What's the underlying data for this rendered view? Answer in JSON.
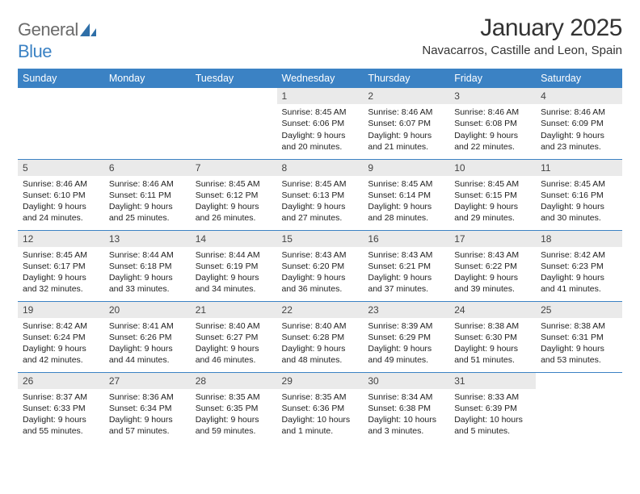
{
  "logo": {
    "general": "General",
    "blue": "Blue"
  },
  "title": "January 2025",
  "location": "Navacarros, Castille and Leon, Spain",
  "colors": {
    "header_bg": "#3b82c4",
    "header_text": "#ffffff",
    "daynum_bg": "#eaeaea",
    "row_border": "#3b82c4",
    "logo_gray": "#6b6b6b",
    "logo_blue": "#3b82c4"
  },
  "day_headers": [
    "Sunday",
    "Monday",
    "Tuesday",
    "Wednesday",
    "Thursday",
    "Friday",
    "Saturday"
  ],
  "weeks": [
    [
      {
        "n": "",
        "sunrise": "",
        "sunset": "",
        "daylight": ""
      },
      {
        "n": "",
        "sunrise": "",
        "sunset": "",
        "daylight": ""
      },
      {
        "n": "",
        "sunrise": "",
        "sunset": "",
        "daylight": ""
      },
      {
        "n": "1",
        "sunrise": "Sunrise: 8:45 AM",
        "sunset": "Sunset: 6:06 PM",
        "daylight": "Daylight: 9 hours and 20 minutes."
      },
      {
        "n": "2",
        "sunrise": "Sunrise: 8:46 AM",
        "sunset": "Sunset: 6:07 PM",
        "daylight": "Daylight: 9 hours and 21 minutes."
      },
      {
        "n": "3",
        "sunrise": "Sunrise: 8:46 AM",
        "sunset": "Sunset: 6:08 PM",
        "daylight": "Daylight: 9 hours and 22 minutes."
      },
      {
        "n": "4",
        "sunrise": "Sunrise: 8:46 AM",
        "sunset": "Sunset: 6:09 PM",
        "daylight": "Daylight: 9 hours and 23 minutes."
      }
    ],
    [
      {
        "n": "5",
        "sunrise": "Sunrise: 8:46 AM",
        "sunset": "Sunset: 6:10 PM",
        "daylight": "Daylight: 9 hours and 24 minutes."
      },
      {
        "n": "6",
        "sunrise": "Sunrise: 8:46 AM",
        "sunset": "Sunset: 6:11 PM",
        "daylight": "Daylight: 9 hours and 25 minutes."
      },
      {
        "n": "7",
        "sunrise": "Sunrise: 8:45 AM",
        "sunset": "Sunset: 6:12 PM",
        "daylight": "Daylight: 9 hours and 26 minutes."
      },
      {
        "n": "8",
        "sunrise": "Sunrise: 8:45 AM",
        "sunset": "Sunset: 6:13 PM",
        "daylight": "Daylight: 9 hours and 27 minutes."
      },
      {
        "n": "9",
        "sunrise": "Sunrise: 8:45 AM",
        "sunset": "Sunset: 6:14 PM",
        "daylight": "Daylight: 9 hours and 28 minutes."
      },
      {
        "n": "10",
        "sunrise": "Sunrise: 8:45 AM",
        "sunset": "Sunset: 6:15 PM",
        "daylight": "Daylight: 9 hours and 29 minutes."
      },
      {
        "n": "11",
        "sunrise": "Sunrise: 8:45 AM",
        "sunset": "Sunset: 6:16 PM",
        "daylight": "Daylight: 9 hours and 30 minutes."
      }
    ],
    [
      {
        "n": "12",
        "sunrise": "Sunrise: 8:45 AM",
        "sunset": "Sunset: 6:17 PM",
        "daylight": "Daylight: 9 hours and 32 minutes."
      },
      {
        "n": "13",
        "sunrise": "Sunrise: 8:44 AM",
        "sunset": "Sunset: 6:18 PM",
        "daylight": "Daylight: 9 hours and 33 minutes."
      },
      {
        "n": "14",
        "sunrise": "Sunrise: 8:44 AM",
        "sunset": "Sunset: 6:19 PM",
        "daylight": "Daylight: 9 hours and 34 minutes."
      },
      {
        "n": "15",
        "sunrise": "Sunrise: 8:43 AM",
        "sunset": "Sunset: 6:20 PM",
        "daylight": "Daylight: 9 hours and 36 minutes."
      },
      {
        "n": "16",
        "sunrise": "Sunrise: 8:43 AM",
        "sunset": "Sunset: 6:21 PM",
        "daylight": "Daylight: 9 hours and 37 minutes."
      },
      {
        "n": "17",
        "sunrise": "Sunrise: 8:43 AM",
        "sunset": "Sunset: 6:22 PM",
        "daylight": "Daylight: 9 hours and 39 minutes."
      },
      {
        "n": "18",
        "sunrise": "Sunrise: 8:42 AM",
        "sunset": "Sunset: 6:23 PM",
        "daylight": "Daylight: 9 hours and 41 minutes."
      }
    ],
    [
      {
        "n": "19",
        "sunrise": "Sunrise: 8:42 AM",
        "sunset": "Sunset: 6:24 PM",
        "daylight": "Daylight: 9 hours and 42 minutes."
      },
      {
        "n": "20",
        "sunrise": "Sunrise: 8:41 AM",
        "sunset": "Sunset: 6:26 PM",
        "daylight": "Daylight: 9 hours and 44 minutes."
      },
      {
        "n": "21",
        "sunrise": "Sunrise: 8:40 AM",
        "sunset": "Sunset: 6:27 PM",
        "daylight": "Daylight: 9 hours and 46 minutes."
      },
      {
        "n": "22",
        "sunrise": "Sunrise: 8:40 AM",
        "sunset": "Sunset: 6:28 PM",
        "daylight": "Daylight: 9 hours and 48 minutes."
      },
      {
        "n": "23",
        "sunrise": "Sunrise: 8:39 AM",
        "sunset": "Sunset: 6:29 PM",
        "daylight": "Daylight: 9 hours and 49 minutes."
      },
      {
        "n": "24",
        "sunrise": "Sunrise: 8:38 AM",
        "sunset": "Sunset: 6:30 PM",
        "daylight": "Daylight: 9 hours and 51 minutes."
      },
      {
        "n": "25",
        "sunrise": "Sunrise: 8:38 AM",
        "sunset": "Sunset: 6:31 PM",
        "daylight": "Daylight: 9 hours and 53 minutes."
      }
    ],
    [
      {
        "n": "26",
        "sunrise": "Sunrise: 8:37 AM",
        "sunset": "Sunset: 6:33 PM",
        "daylight": "Daylight: 9 hours and 55 minutes."
      },
      {
        "n": "27",
        "sunrise": "Sunrise: 8:36 AM",
        "sunset": "Sunset: 6:34 PM",
        "daylight": "Daylight: 9 hours and 57 minutes."
      },
      {
        "n": "28",
        "sunrise": "Sunrise: 8:35 AM",
        "sunset": "Sunset: 6:35 PM",
        "daylight": "Daylight: 9 hours and 59 minutes."
      },
      {
        "n": "29",
        "sunrise": "Sunrise: 8:35 AM",
        "sunset": "Sunset: 6:36 PM",
        "daylight": "Daylight: 10 hours and 1 minute."
      },
      {
        "n": "30",
        "sunrise": "Sunrise: 8:34 AM",
        "sunset": "Sunset: 6:38 PM",
        "daylight": "Daylight: 10 hours and 3 minutes."
      },
      {
        "n": "31",
        "sunrise": "Sunrise: 8:33 AM",
        "sunset": "Sunset: 6:39 PM",
        "daylight": "Daylight: 10 hours and 5 minutes."
      },
      {
        "n": "",
        "sunrise": "",
        "sunset": "",
        "daylight": ""
      }
    ]
  ]
}
